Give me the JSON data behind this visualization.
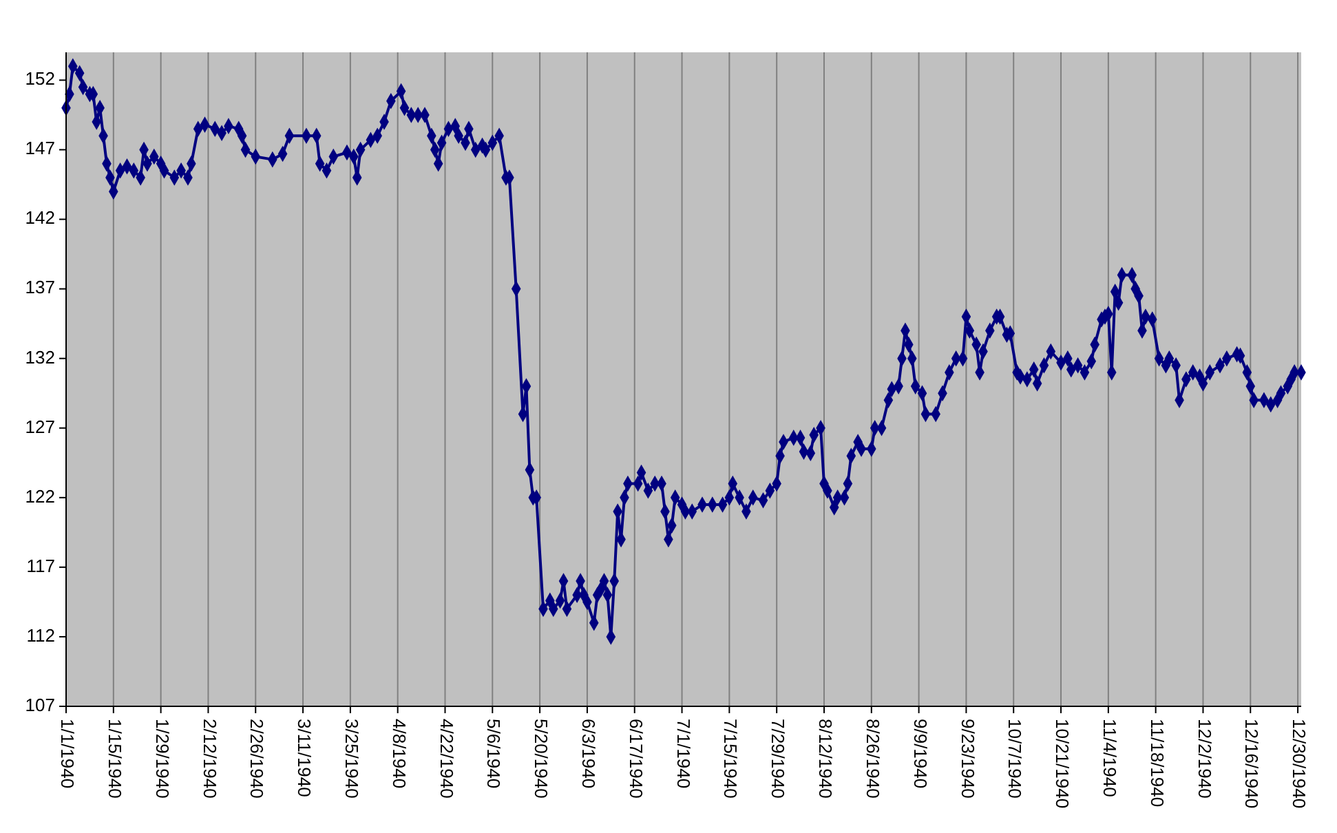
{
  "chart_data": {
    "type": "line",
    "xlim": [
      "1940-01-01",
      "1940-12-31"
    ],
    "xticks": [
      {
        "value": "1940-01-01",
        "label": "1/1/1940"
      },
      {
        "value": "1940-01-15",
        "label": "1/15/1940"
      },
      {
        "value": "1940-01-29",
        "label": "1/29/1940"
      },
      {
        "value": "1940-02-12",
        "label": "2/12/1940"
      },
      {
        "value": "1940-02-26",
        "label": "2/26/1940"
      },
      {
        "value": "1940-03-11",
        "label": "3/11/1940"
      },
      {
        "value": "1940-03-25",
        "label": "3/25/1940"
      },
      {
        "value": "1940-04-08",
        "label": "4/8/1940"
      },
      {
        "value": "1940-04-22",
        "label": "4/22/1940"
      },
      {
        "value": "1940-05-06",
        "label": "5/6/1940"
      },
      {
        "value": "1940-05-20",
        "label": "5/20/1940"
      },
      {
        "value": "1940-06-03",
        "label": "6/3/1940"
      },
      {
        "value": "1940-06-17",
        "label": "6/17/1940"
      },
      {
        "value": "1940-07-01",
        "label": "7/1/1940"
      },
      {
        "value": "1940-07-15",
        "label": "7/15/1940"
      },
      {
        "value": "1940-07-29",
        "label": "7/29/1940"
      },
      {
        "value": "1940-08-12",
        "label": "8/12/1940"
      },
      {
        "value": "1940-08-26",
        "label": "8/26/1940"
      },
      {
        "value": "1940-09-09",
        "label": "9/9/1940"
      },
      {
        "value": "1940-09-23",
        "label": "9/23/1940"
      },
      {
        "value": "1940-10-07",
        "label": "10/7/1940"
      },
      {
        "value": "1940-10-21",
        "label": "10/21/1940"
      },
      {
        "value": "1940-11-04",
        "label": "11/4/1940"
      },
      {
        "value": "1940-11-18",
        "label": "11/18/1940"
      },
      {
        "value": "1940-12-02",
        "label": "12/2/1940"
      },
      {
        "value": "1940-12-16",
        "label": "12/16/1940"
      },
      {
        "value": "1940-12-30",
        "label": "12/30/1940"
      }
    ],
    "ylim": [
      107,
      154
    ],
    "yticks": [
      107,
      112,
      117,
      122,
      127,
      132,
      137,
      142,
      147,
      152
    ],
    "grid": "x",
    "marker": "diamond",
    "line_style": "solid",
    "x": [
      "1940-01-01",
      "1940-01-02",
      "1940-01-03",
      "1940-01-05",
      "1940-01-06",
      "1940-01-08",
      "1940-01-09",
      "1940-01-10",
      "1940-01-11",
      "1940-01-12",
      "1940-01-13",
      "1940-01-14",
      "1940-01-15",
      "1940-01-17",
      "1940-01-19",
      "1940-01-21",
      "1940-01-23",
      "1940-01-24",
      "1940-01-25",
      "1940-01-27",
      "1940-01-29",
      "1940-01-30",
      "1940-02-02",
      "1940-02-04",
      "1940-02-06",
      "1940-02-07",
      "1940-02-09",
      "1940-02-11",
      "1940-02-14",
      "1940-02-16",
      "1940-02-18",
      "1940-02-21",
      "1940-02-22",
      "1940-02-23",
      "1940-02-26",
      "1940-03-02",
      "1940-03-05",
      "1940-03-07",
      "1940-03-12",
      "1940-03-15",
      "1940-03-16",
      "1940-03-18",
      "1940-03-20",
      "1940-03-24",
      "1940-03-26",
      "1940-03-27",
      "1940-03-28",
      "1940-03-31",
      "1940-04-02",
      "1940-04-04",
      "1940-04-06",
      "1940-04-09",
      "1940-04-10",
      "1940-04-12",
      "1940-04-14",
      "1940-04-16",
      "1940-04-18",
      "1940-04-19",
      "1940-04-20",
      "1940-04-21",
      "1940-04-23",
      "1940-04-25",
      "1940-04-26",
      "1940-04-28",
      "1940-04-29",
      "1940-05-01",
      "1940-05-03",
      "1940-05-04",
      "1940-05-06",
      "1940-05-08",
      "1940-05-10",
      "1940-05-11",
      "1940-05-13",
      "1940-05-15",
      "1940-05-16",
      "1940-05-17",
      "1940-05-18",
      "1940-05-19",
      "1940-05-21",
      "1940-05-23",
      "1940-05-24",
      "1940-05-26",
      "1940-05-27",
      "1940-05-28",
      "1940-05-31",
      "1940-06-01",
      "1940-06-02",
      "1940-06-03",
      "1940-06-05",
      "1940-06-06",
      "1940-06-07",
      "1940-06-08",
      "1940-06-09",
      "1940-06-10",
      "1940-06-11",
      "1940-06-12",
      "1940-06-13",
      "1940-06-14",
      "1940-06-15",
      "1940-06-18",
      "1940-06-19",
      "1940-06-21",
      "1940-06-23",
      "1940-06-25",
      "1940-06-26",
      "1940-06-27",
      "1940-06-28",
      "1940-06-29",
      "1940-07-01",
      "1940-07-02",
      "1940-07-04",
      "1940-07-07",
      "1940-07-10",
      "1940-07-13",
      "1940-07-15",
      "1940-07-16",
      "1940-07-18",
      "1940-07-20",
      "1940-07-22",
      "1940-07-25",
      "1940-07-27",
      "1940-07-29",
      "1940-07-30",
      "1940-07-31",
      "1940-08-03",
      "1940-08-05",
      "1940-08-06",
      "1940-08-08",
      "1940-08-09",
      "1940-08-11",
      "1940-08-12",
      "1940-08-13",
      "1940-08-15",
      "1940-08-16",
      "1940-08-18",
      "1940-08-19",
      "1940-08-20",
      "1940-08-22",
      "1940-08-23",
      "1940-08-26",
      "1940-08-27",
      "1940-08-29",
      "1940-08-31",
      "1940-09-01",
      "1940-09-03",
      "1940-09-04",
      "1940-09-05",
      "1940-09-06",
      "1940-09-07",
      "1940-09-08",
      "1940-09-10",
      "1940-09-11",
      "1940-09-14",
      "1940-09-16",
      "1940-09-18",
      "1940-09-20",
      "1940-09-22",
      "1940-09-23",
      "1940-09-24",
      "1940-09-26",
      "1940-09-27",
      "1940-09-28",
      "1940-09-30",
      "1940-10-02",
      "1940-10-03",
      "1940-10-05",
      "1940-10-06",
      "1940-10-08",
      "1940-10-09",
      "1940-10-11",
      "1940-10-13",
      "1940-10-14",
      "1940-10-16",
      "1940-10-18",
      "1940-10-21",
      "1940-10-23",
      "1940-10-24",
      "1940-10-26",
      "1940-10-28",
      "1940-10-30",
      "1940-10-31",
      "1940-11-02",
      "1940-11-03",
      "1940-11-04",
      "1940-11-05",
      "1940-11-06",
      "1940-11-07",
      "1940-11-08",
      "1940-11-11",
      "1940-11-12",
      "1940-11-13",
      "1940-11-14",
      "1940-11-15",
      "1940-11-17",
      "1940-11-19",
      "1940-11-21",
      "1940-11-22",
      "1940-11-24",
      "1940-11-25",
      "1940-11-27",
      "1940-11-29",
      "1940-12-01",
      "1940-12-02",
      "1940-12-04",
      "1940-12-07",
      "1940-12-09",
      "1940-12-12",
      "1940-12-13",
      "1940-12-15",
      "1940-12-16",
      "1940-12-17",
      "1940-12-20",
      "1940-12-22",
      "1940-12-24",
      "1940-12-25",
      "1940-12-27",
      "1940-12-28",
      "1940-12-29",
      "1940-12-31"
    ],
    "series": [
      {
        "color": "#000080",
        "values": [
          150,
          151,
          153,
          152.5,
          151.5,
          151,
          151,
          149,
          150,
          148,
          146,
          145,
          144,
          145.5,
          145.8,
          145.5,
          145,
          147,
          146,
          146.5,
          146,
          145.5,
          145,
          145.5,
          145,
          146,
          148.5,
          148.8,
          148.5,
          148.2,
          148.7,
          148.5,
          148,
          147,
          146.5,
          146.3,
          146.7,
          148,
          148,
          148,
          146,
          145.5,
          146.5,
          146.8,
          146.5,
          145,
          147,
          147.7,
          148,
          149,
          150.5,
          151.2,
          150,
          149.5,
          149.5,
          149.5,
          148,
          147,
          146,
          147.5,
          148.5,
          148.7,
          148,
          147.5,
          148.5,
          147,
          147.3,
          147,
          147.5,
          148,
          145,
          145,
          137,
          128,
          130,
          124,
          122,
          122,
          114,
          114.6,
          114,
          114.6,
          116,
          114,
          115,
          116,
          115,
          114.5,
          113,
          115,
          115.4,
          116,
          115,
          112,
          116,
          121,
          119,
          122,
          123,
          123,
          123.8,
          122.5,
          123,
          123,
          121,
          119,
          120,
          122,
          121.5,
          121,
          121,
          121.5,
          121.5,
          121.5,
          122,
          123,
          122,
          121,
          122,
          121.8,
          122.5,
          123,
          125,
          126,
          126.3,
          126.3,
          125.3,
          125.2,
          126.5,
          127,
          123,
          122.5,
          121.3,
          122,
          122,
          123,
          125,
          126,
          125.5,
          125.5,
          127,
          127,
          129,
          129.8,
          130,
          132,
          134,
          133,
          132,
          130,
          129.5,
          128,
          128,
          129.5,
          131,
          132,
          132,
          135,
          134,
          133,
          131,
          132.5,
          134,
          135,
          135,
          133.7,
          133.8,
          131,
          130.7,
          130.5,
          131.2,
          130.2,
          131.5,
          132.5,
          131.7,
          132,
          131.2,
          131.5,
          131,
          131.8,
          133,
          134.8,
          135,
          135.2,
          131,
          136.8,
          136,
          138,
          138,
          137,
          136.5,
          134,
          135,
          134.8,
          132,
          131.5,
          132,
          131.5,
          129,
          130.5,
          131,
          130.7,
          130.2,
          131,
          131.5,
          132,
          132.3,
          132.2,
          131,
          130,
          129,
          129,
          128.7,
          129,
          129.5,
          130,
          130.5,
          131,
          131
        ]
      }
    ]
  }
}
